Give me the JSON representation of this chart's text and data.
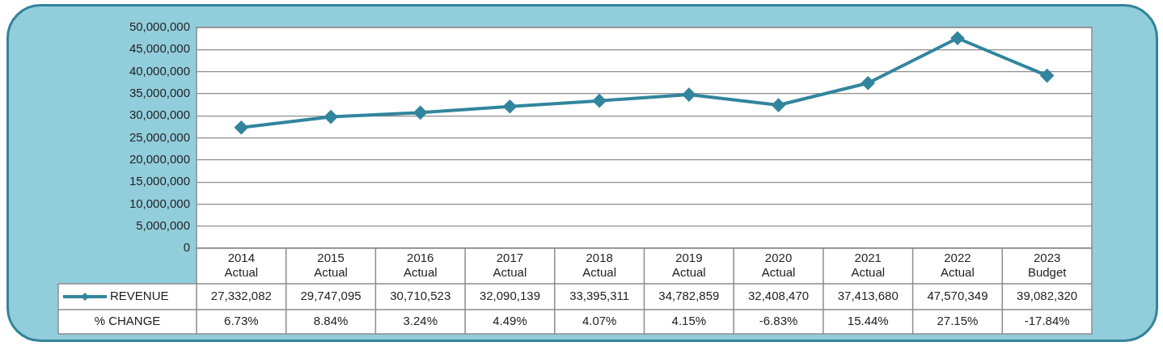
{
  "chart_data": {
    "type": "line",
    "categories": [
      "2014 Actual",
      "2015 Actual",
      "2016 Actual",
      "2017 Actual",
      "2018 Actual",
      "2019 Actual",
      "2020 Actual",
      "2021 Actual",
      "2022 Actual",
      "2023 Budget"
    ],
    "series": [
      {
        "name": "REVENUE",
        "color": "#31859c",
        "values": [
          27332082,
          29747095,
          30710523,
          32090139,
          33395311,
          34782859,
          32408470,
          37413680,
          47570349,
          39082320
        ],
        "value_labels": [
          "27,332,082",
          "29,747,095",
          "30,710,523",
          "32,090,139",
          "33,395,311",
          "34,782,859",
          "32,408,470",
          "37,413,680",
          "47,570,349",
          "39,082,320"
        ]
      }
    ],
    "ylim": [
      0,
      50000000
    ],
    "yticks": [
      0,
      {
        "value": 5000000,
        "label": "5,000,000"
      },
      {
        "value": 10000000,
        "label": "10,000,000"
      },
      {
        "value": 15000000,
        "label": "15,000,000"
      },
      {
        "value": 20000000,
        "label": "20,000,000"
      },
      {
        "value": 25000000,
        "label": "25,000,000"
      },
      {
        "value": 30000000,
        "label": "30,000,000"
      },
      {
        "value": 35000000,
        "label": "35,000,000"
      },
      {
        "value": 40000000,
        "label": "40,000,000"
      },
      {
        "value": 45000000,
        "label": "45,000,000"
      },
      {
        "value": 50000000,
        "label": "50,000,000"
      }
    ],
    "grid": "y",
    "legend": "bottom",
    "marker": "diamond",
    "line_style": "solid",
    "annotations": [
      "% CHANGE",
      "6.73%",
      "8.84%",
      "3.24%",
      "4.49%",
      "4.07%",
      "4.15%",
      "-6.83%",
      "15.44%",
      "27.15%",
      "-17.84%"
    ]
  }
}
